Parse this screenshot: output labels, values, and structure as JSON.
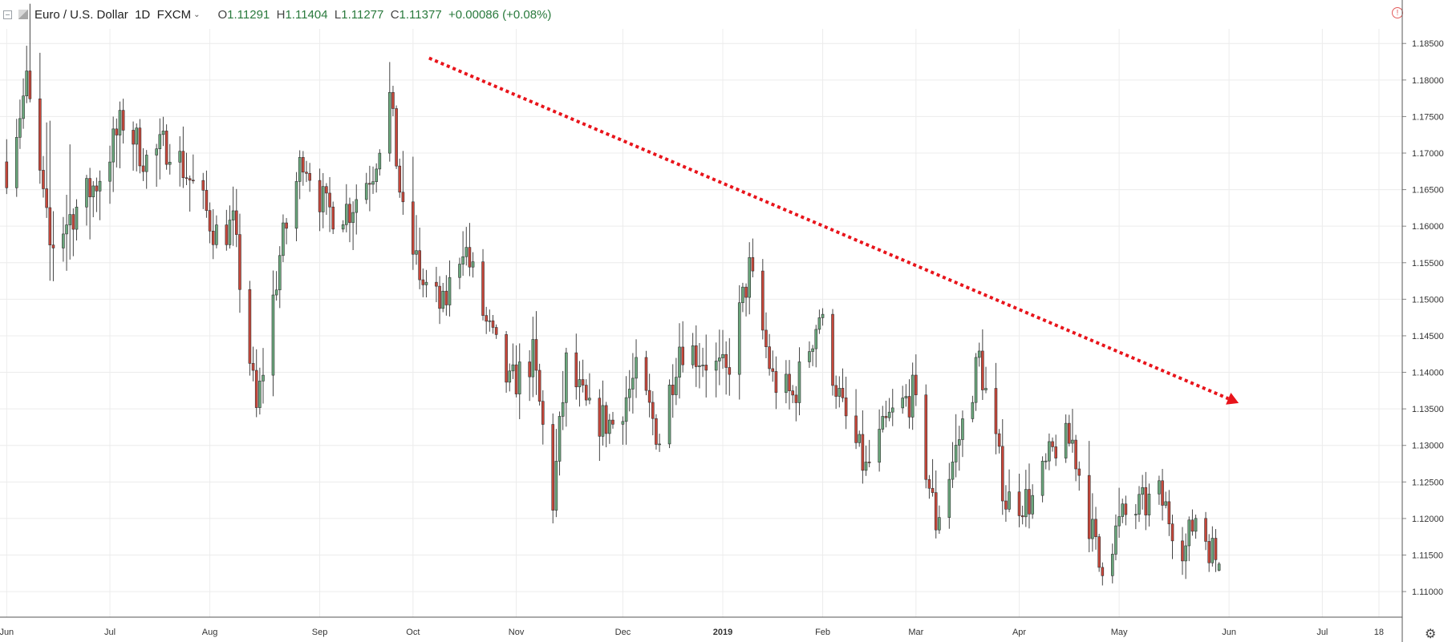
{
  "header": {
    "symbol": "Euro / U.S. Dollar",
    "interval": "1D",
    "source": "FXCM",
    "ohlc": {
      "o": "1.11291",
      "h": "1.11404",
      "l": "1.11277",
      "c": "1.11377",
      "change": "+0.00086 (+0.08%)"
    }
  },
  "icons": {
    "collapse": "collapse-icon",
    "symbol_logo": "flag-icon",
    "alert": "alert-icon",
    "settings": "gear-icon"
  },
  "colors": {
    "up": "#6aa77c",
    "down": "#c8473a",
    "wick": "#444444",
    "grid": "#ececec",
    "trend_arrow": "#e8141b"
  },
  "chart_data": {
    "type": "candlestick",
    "instrument": "EURUSD",
    "timeframe": "1D",
    "y_ticks": [
      "1.18500",
      "1.18000",
      "1.17500",
      "1.17000",
      "1.16500",
      "1.16000",
      "1.15500",
      "1.15000",
      "1.14500",
      "1.14000",
      "1.13500",
      "1.13000",
      "1.12500",
      "1.12000",
      "1.11500",
      "1.11000"
    ],
    "ylim": [
      1.1065,
      1.187
    ],
    "x_ticks": [
      {
        "label": "Jun",
        "date": "2018-06-01"
      },
      {
        "label": "Jul",
        "date": "2018-07-02"
      },
      {
        "label": "Aug",
        "date": "2018-08-01"
      },
      {
        "label": "Sep",
        "date": "2018-09-03"
      },
      {
        "label": "Oct",
        "date": "2018-10-01"
      },
      {
        "label": "Nov",
        "date": "2018-11-01"
      },
      {
        "label": "Dec",
        "date": "2018-12-03"
      },
      {
        "label": "2019",
        "date": "2019-01-02"
      },
      {
        "label": "Feb",
        "date": "2019-02-01"
      },
      {
        "label": "Mar",
        "date": "2019-03-01"
      },
      {
        "label": "Apr",
        "date": "2019-04-01"
      },
      {
        "label": "May",
        "date": "2019-05-01"
      },
      {
        "label": "Jun",
        "date": "2019-06-03"
      },
      {
        "label": "Jul",
        "date": "2019-07-01"
      },
      {
        "label": "18",
        "date": "2019-07-18"
      }
    ],
    "xlim": [
      "2018-06-01",
      "2019-07-25"
    ],
    "anchors": [
      [
        "2018-06-01",
        1.168,
        1.1745,
        1.1655
      ],
      [
        "2018-06-07",
        1.1795,
        1.184,
        1.176
      ],
      [
        "2018-06-14",
        1.157,
        1.185,
        1.1545
      ],
      [
        "2018-06-21",
        1.162,
        1.1655,
        1.151
      ],
      [
        "2018-06-28",
        1.166,
        1.1695,
        1.153
      ],
      [
        "2018-07-06",
        1.1745,
        1.179,
        1.1655
      ],
      [
        "2018-07-13",
        1.169,
        1.1735,
        1.164
      ],
      [
        "2018-07-20",
        1.1715,
        1.175,
        1.162
      ],
      [
        "2018-07-27",
        1.1655,
        1.173,
        1.162
      ],
      [
        "2018-08-03",
        1.159,
        1.163,
        1.154
      ],
      [
        "2018-08-08",
        1.16,
        1.162,
        1.153
      ],
      [
        "2018-08-15",
        1.1345,
        1.142,
        1.13
      ],
      [
        "2018-08-22",
        1.156,
        1.158,
        1.15
      ],
      [
        "2018-08-29",
        1.17,
        1.1735,
        1.166
      ],
      [
        "2018-09-05",
        1.162,
        1.165,
        1.156
      ],
      [
        "2018-09-12",
        1.1625,
        1.168,
        1.155
      ],
      [
        "2018-09-19",
        1.168,
        1.171,
        1.164
      ],
      [
        "2018-09-24",
        1.1775,
        1.1815,
        1.174
      ],
      [
        "2018-09-28",
        1.161,
        1.176,
        1.16
      ],
      [
        "2018-10-04",
        1.152,
        1.1565,
        1.148
      ],
      [
        "2018-10-10",
        1.1485,
        1.153,
        1.146
      ],
      [
        "2018-10-16",
        1.158,
        1.162,
        1.156
      ],
      [
        "2018-10-23",
        1.1465,
        1.154,
        1.144
      ],
      [
        "2018-10-30",
        1.138,
        1.144,
        1.1355
      ],
      [
        "2018-11-06",
        1.142,
        1.15,
        1.133
      ],
      [
        "2018-11-12",
        1.1225,
        1.1335,
        1.1215
      ],
      [
        "2018-11-16",
        1.141,
        1.147,
        1.136
      ],
      [
        "2018-11-23",
        1.134,
        1.14,
        1.127
      ],
      [
        "2018-11-30",
        1.133,
        1.14,
        1.1295
      ],
      [
        "2018-12-07",
        1.1395,
        1.144,
        1.131
      ],
      [
        "2018-12-14",
        1.131,
        1.1375,
        1.127
      ],
      [
        "2018-12-20",
        1.144,
        1.148,
        1.137
      ],
      [
        "2018-12-27",
        1.142,
        1.149,
        1.138
      ],
      [
        "2019-01-03",
        1.1395,
        1.149,
        1.131
      ],
      [
        "2019-01-10",
        1.154,
        1.157,
        1.149
      ],
      [
        "2019-01-17",
        1.139,
        1.145,
        1.135
      ],
      [
        "2019-01-23",
        1.1365,
        1.142,
        1.129
      ],
      [
        "2019-01-31",
        1.148,
        1.1515,
        1.143
      ],
      [
        "2019-02-07",
        1.1345,
        1.138,
        1.131
      ],
      [
        "2019-02-14",
        1.1265,
        1.134,
        1.1235
      ],
      [
        "2019-02-21",
        1.1335,
        1.137,
        1.131
      ],
      [
        "2019-02-28",
        1.137,
        1.142,
        1.133
      ],
      [
        "2019-03-07",
        1.1195,
        1.129,
        1.1175
      ],
      [
        "2019-03-14",
        1.131,
        1.135,
        1.127
      ],
      [
        "2019-03-20",
        1.142,
        1.145,
        1.135
      ],
      [
        "2019-03-28",
        1.1225,
        1.13,
        1.121
      ],
      [
        "2019-04-05",
        1.1225,
        1.126,
        1.119
      ],
      [
        "2019-04-12",
        1.13,
        1.1325,
        1.127
      ],
      [
        "2019-04-17",
        1.1305,
        1.1325,
        1.126
      ],
      [
        "2019-04-25",
        1.1135,
        1.124,
        1.111
      ],
      [
        "2019-05-02",
        1.12,
        1.124,
        1.116
      ],
      [
        "2019-05-13",
        1.123,
        1.1265,
        1.119
      ],
      [
        "2019-05-21",
        1.116,
        1.119,
        1.111
      ],
      [
        "2019-05-24",
        1.1205,
        1.1215,
        1.116
      ],
      [
        "2019-05-31",
        1.1137,
        1.114,
        1.1128
      ]
    ],
    "last_bar": {
      "date": "2019-05-31",
      "o": 1.11291,
      "h": 1.11404,
      "l": 1.11277,
      "c": 1.11377
    },
    "annotation": {
      "type": "dotted-arrow",
      "from": [
        "2018-10-01",
        1.183
      ],
      "to": [
        "2019-06-03",
        1.1358
      ],
      "color": "#e8141b"
    }
  }
}
